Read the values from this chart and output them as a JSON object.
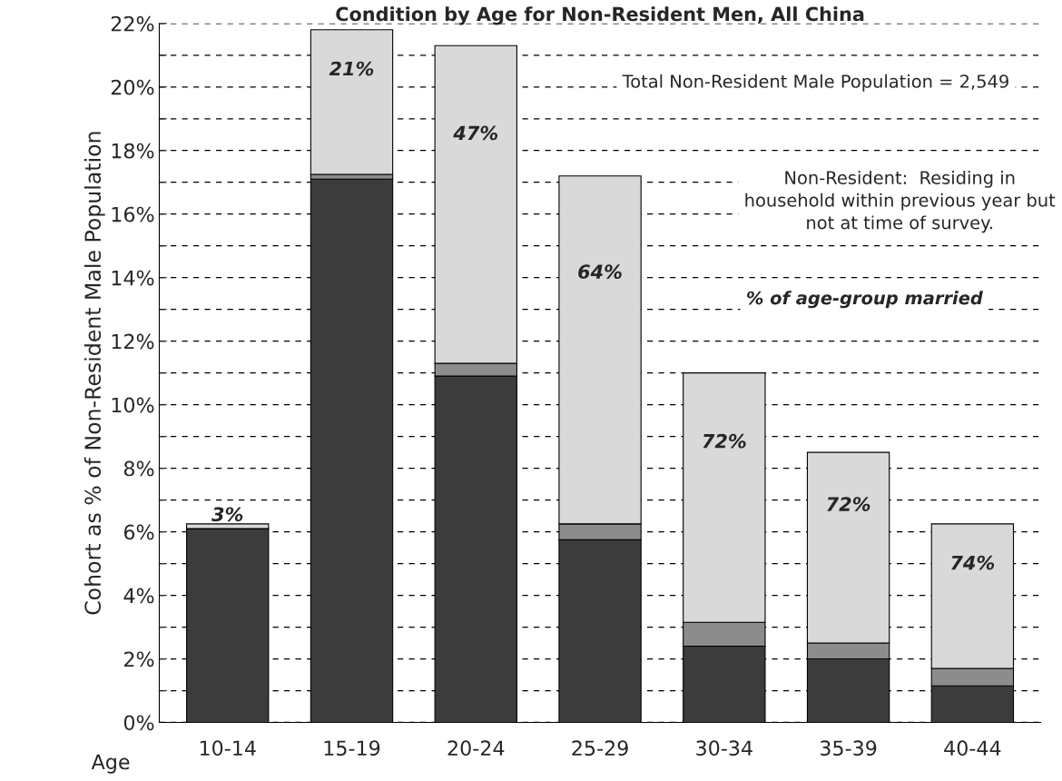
{
  "chart_data": {
    "type": "bar",
    "title": "Condition by Age for Non-Resident Men, All China",
    "xlabel": "Age",
    "ylabel": "Cohort as % of Non-Resident Male Population",
    "categories": [
      "10-14",
      "15-19",
      "20-24",
      "25-29",
      "30-34",
      "35-39",
      "40-44"
    ],
    "stacked": true,
    "series": [
      {
        "color": "#3c3c3c",
        "values": [
          6.1,
          17.1,
          10.9,
          5.75,
          2.4,
          2.0,
          1.15
        ]
      },
      {
        "color": "#8c8c8c",
        "values": [
          null,
          0.15,
          0.4,
          0.5,
          0.75,
          0.5,
          0.55
        ]
      },
      {
        "color": "#d9d9d9",
        "values": [
          0.15,
          4.55,
          10.0,
          10.95,
          7.85,
          6.0,
          4.55
        ]
      }
    ],
    "ylim": [
      0,
      22
    ],
    "yticks": [
      {
        "value": 0,
        "label": "0%"
      },
      {
        "value": 1,
        "label": null
      },
      {
        "value": 2,
        "label": "2%"
      },
      {
        "value": 3,
        "label": null
      },
      {
        "value": 4,
        "label": "4%"
      },
      {
        "value": 5,
        "label": null
      },
      {
        "value": 6,
        "label": "6%"
      },
      {
        "value": 7,
        "label": null
      },
      {
        "value": 8,
        "label": "8%"
      },
      {
        "value": 9,
        "label": null
      },
      {
        "value": 10,
        "label": "10%"
      },
      {
        "value": 11,
        "label": null
      },
      {
        "value": 12,
        "label": "12%"
      },
      {
        "value": 13,
        "label": null
      },
      {
        "value": 14,
        "label": "14%"
      },
      {
        "value": 15,
        "label": null
      },
      {
        "value": 16,
        "label": "16%"
      },
      {
        "value": 17,
        "label": null
      },
      {
        "value": 18,
        "label": "18%"
      },
      {
        "value": 19,
        "label": null
      },
      {
        "value": 20,
        "label": "20%"
      },
      {
        "value": 21,
        "label": null
      },
      {
        "value": 22,
        "label": "22%"
      }
    ],
    "grid": "y",
    "annotations": [
      "Total Non-Resident Male Population = 2,549",
      "Non-Resident:  Residing in\nhousehold within previous year but\nnot at time of survey.",
      "% of age-group married",
      "3%",
      "21%",
      "47%",
      "64%",
      "72%",
      "72%",
      "74%"
    ]
  }
}
